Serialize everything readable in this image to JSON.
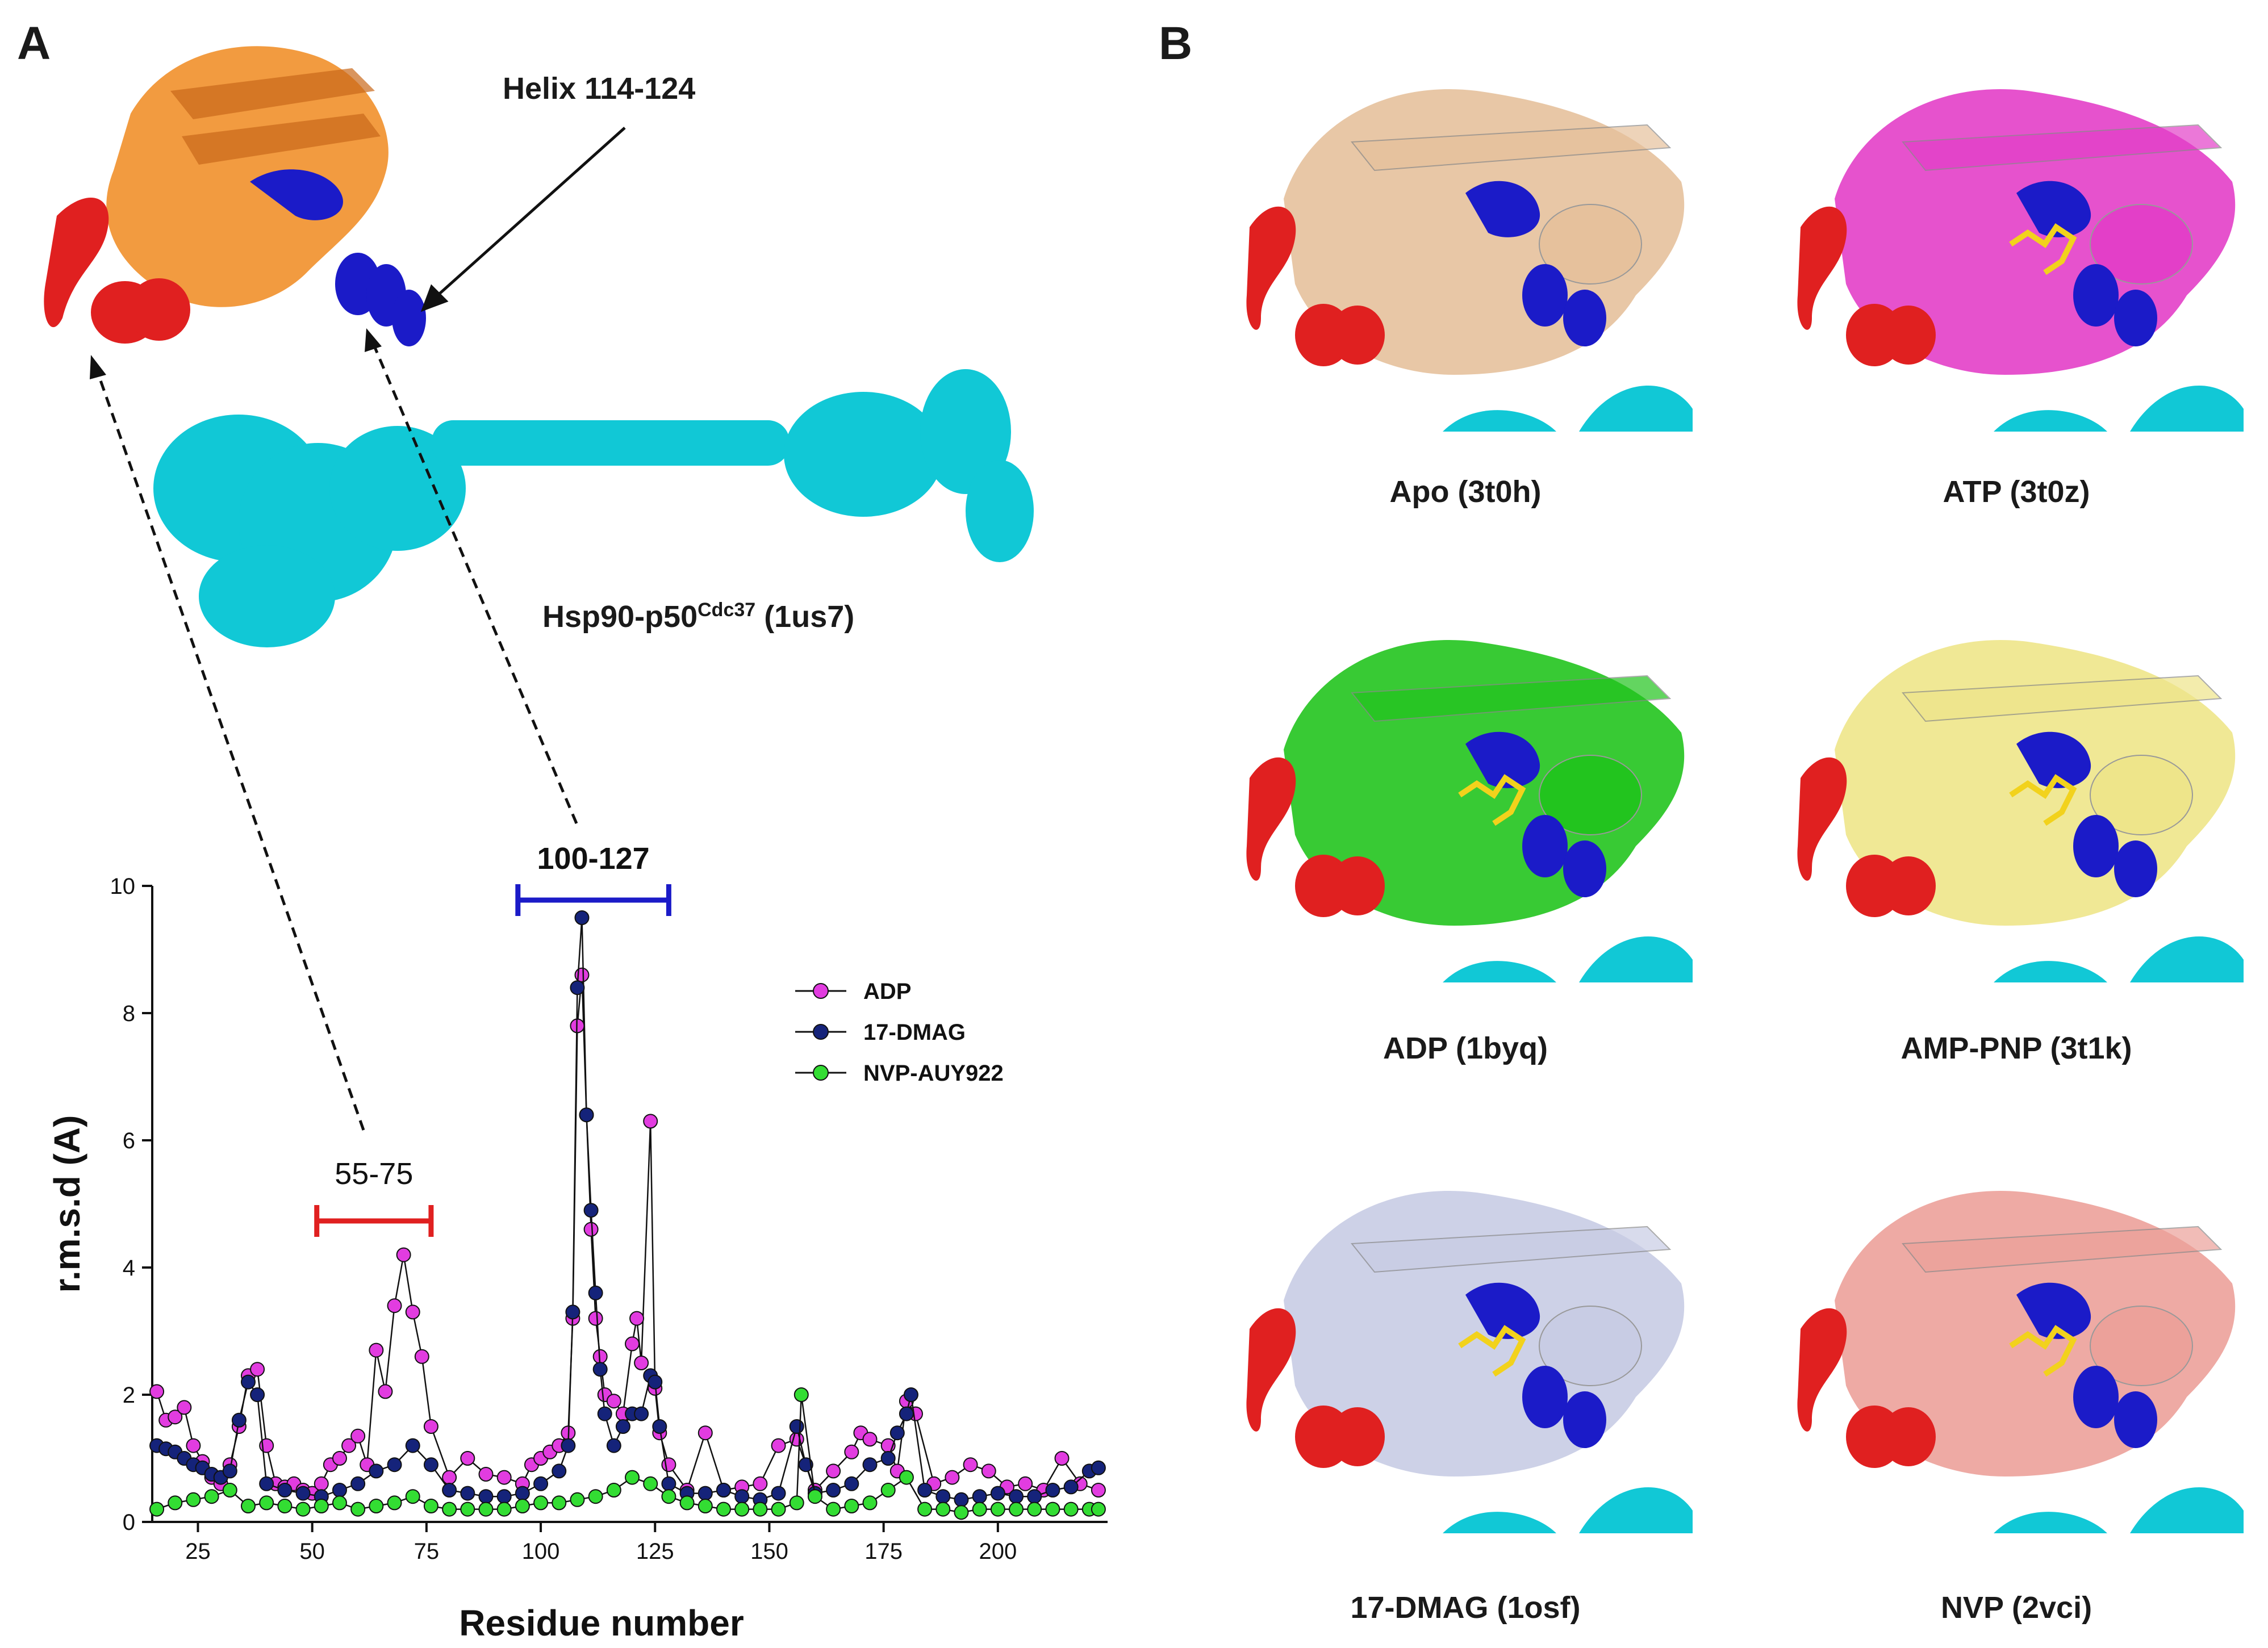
{
  "panels": {
    "a_letter": "A",
    "b_letter": "B"
  },
  "panel_a": {
    "helix_label": "Helix 114-124",
    "complex_label": "Hsp90-p50",
    "complex_sup": "Cdc37",
    "complex_pdb": " (1us7)",
    "range_red_label": "55-75",
    "range_blue_label": "100-127"
  },
  "panel_b": {
    "captions": [
      "Apo (3t0h)",
      "ATP (3t0z)",
      "ADP (1byq)",
      "AMP-PNP (3t1k)",
      "17-DMAG (1osf)",
      "NVP (2vci)"
    ]
  },
  "colors": {
    "adp": "#e23ce0",
    "dmag": "#15237a",
    "nvp": "#33dd33",
    "red_region": "#e02020",
    "blue_region": "#1b1bc8",
    "cyan": "#11c8d6",
    "orange": "#f08a1e"
  },
  "chart_data": {
    "type": "scatter",
    "xlabel": "Residue number",
    "ylabel": "r.m.s.d (A)",
    "xlim": [
      15,
      224
    ],
    "ylim": [
      0,
      10
    ],
    "xticks": [
      25,
      50,
      75,
      100,
      125,
      150,
      175,
      200
    ],
    "yticks": [
      0,
      2,
      4,
      6,
      8,
      10
    ],
    "legend_position": "right",
    "series": [
      {
        "name": "ADP",
        "x": [
          16,
          18,
          20,
          22,
          24,
          26,
          28,
          30,
          32,
          34,
          36,
          38,
          40,
          42,
          44,
          46,
          48,
          50,
          52,
          54,
          56,
          58,
          60,
          62,
          64,
          66,
          68,
          70,
          72,
          74,
          76,
          80,
          84,
          88,
          92,
          96,
          98,
          100,
          102,
          104,
          106,
          107,
          108,
          109,
          110,
          111,
          112,
          113,
          114,
          116,
          118,
          120,
          121,
          122,
          124,
          125,
          126,
          128,
          132,
          136,
          140,
          144,
          148,
          152,
          156,
          160,
          164,
          168,
          170,
          172,
          176,
          178,
          180,
          182,
          186,
          190,
          194,
          198,
          202,
          206,
          210,
          214,
          218,
          222
        ],
        "y": [
          2.05,
          1.6,
          1.65,
          1.8,
          1.2,
          0.95,
          0.7,
          0.6,
          0.9,
          1.5,
          2.3,
          2.4,
          1.2,
          0.6,
          0.55,
          0.6,
          0.5,
          0.45,
          0.6,
          0.9,
          1.0,
          1.2,
          1.35,
          0.9,
          2.7,
          2.05,
          3.4,
          4.2,
          3.3,
          2.6,
          1.5,
          0.7,
          1.0,
          0.75,
          0.7,
          0.6,
          0.9,
          1.0,
          1.1,
          1.2,
          1.4,
          3.2,
          7.8,
          8.6,
          6.4,
          4.6,
          3.2,
          2.6,
          2.0,
          1.9,
          1.7,
          2.8,
          3.2,
          2.5,
          6.3,
          2.1,
          1.4,
          0.9,
          0.5,
          1.4,
          0.5,
          0.55,
          0.6,
          1.2,
          1.3,
          0.5,
          0.8,
          1.1,
          1.4,
          1.3,
          1.2,
          0.8,
          1.9,
          1.7,
          0.6,
          0.7,
          0.9,
          0.8,
          0.55,
          0.6,
          0.5,
          1.0,
          0.6,
          0.5
        ]
      },
      {
        "name": "17-DMAG",
        "x": [
          16,
          18,
          20,
          22,
          24,
          26,
          28,
          30,
          32,
          34,
          36,
          38,
          40,
          44,
          48,
          52,
          56,
          60,
          64,
          68,
          72,
          76,
          80,
          84,
          88,
          92,
          96,
          100,
          104,
          106,
          107,
          108,
          109,
          110,
          111,
          112,
          113,
          114,
          116,
          118,
          120,
          122,
          124,
          125,
          126,
          128,
          132,
          136,
          140,
          144,
          148,
          152,
          156,
          158,
          160,
          164,
          168,
          172,
          176,
          178,
          180,
          181,
          184,
          188,
          192,
          196,
          200,
          204,
          208,
          212,
          216,
          220,
          222
        ],
        "y": [
          1.2,
          1.15,
          1.1,
          1.0,
          0.9,
          0.85,
          0.75,
          0.7,
          0.8,
          1.6,
          2.2,
          2.0,
          0.6,
          0.5,
          0.45,
          0.4,
          0.5,
          0.6,
          0.8,
          0.9,
          1.2,
          0.9,
          0.5,
          0.45,
          0.4,
          0.4,
          0.45,
          0.6,
          0.8,
          1.2,
          3.3,
          8.4,
          9.5,
          6.4,
          4.9,
          3.6,
          2.4,
          1.7,
          1.2,
          1.5,
          1.7,
          1.7,
          2.3,
          2.2,
          1.5,
          0.6,
          0.45,
          0.45,
          0.5,
          0.4,
          0.35,
          0.45,
          1.5,
          0.9,
          0.45,
          0.5,
          0.6,
          0.9,
          1.0,
          1.4,
          1.7,
          2.0,
          0.5,
          0.4,
          0.35,
          0.4,
          0.45,
          0.4,
          0.4,
          0.5,
          0.55,
          0.8,
          0.85
        ]
      },
      {
        "name": "NVP-AUY922",
        "x": [
          16,
          20,
          24,
          28,
          32,
          36,
          40,
          44,
          48,
          52,
          56,
          60,
          64,
          68,
          72,
          76,
          80,
          84,
          88,
          92,
          96,
          100,
          104,
          108,
          112,
          116,
          120,
          124,
          128,
          132,
          136,
          140,
          144,
          148,
          152,
          156,
          157,
          160,
          164,
          168,
          172,
          176,
          180,
          184,
          188,
          192,
          196,
          200,
          204,
          208,
          212,
          216,
          220,
          222
        ],
        "y": [
          0.2,
          0.3,
          0.35,
          0.4,
          0.5,
          0.25,
          0.3,
          0.25,
          0.2,
          0.25,
          0.3,
          0.2,
          0.25,
          0.3,
          0.4,
          0.25,
          0.2,
          0.2,
          0.2,
          0.2,
          0.25,
          0.3,
          0.3,
          0.35,
          0.4,
          0.5,
          0.7,
          0.6,
          0.4,
          0.3,
          0.25,
          0.2,
          0.2,
          0.2,
          0.2,
          0.3,
          2.0,
          0.4,
          0.2,
          0.25,
          0.3,
          0.5,
          0.7,
          0.2,
          0.2,
          0.15,
          0.2,
          0.2,
          0.2,
          0.2,
          0.2,
          0.2,
          0.2,
          0.2
        ]
      }
    ]
  }
}
